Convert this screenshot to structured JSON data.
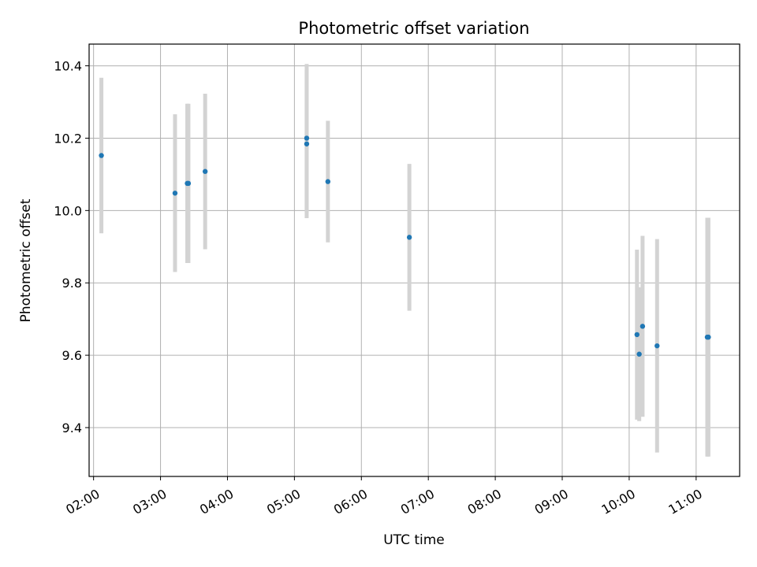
{
  "chart_data": {
    "type": "scatter",
    "title": "Photometric offset variation",
    "xlabel": "UTC time",
    "ylabel": "Photometric offset",
    "x_ticks": [
      "02:00",
      "03:00",
      "04:00",
      "05:00",
      "06:00",
      "07:00",
      "08:00",
      "09:00",
      "10:00",
      "11:00"
    ],
    "y_ticks": [
      "9.4",
      "9.6",
      "9.8",
      "10.0",
      "10.2",
      "10.4"
    ],
    "xlim": [
      "01:56",
      "11:39"
    ],
    "ylim": [
      9.265,
      10.46
    ],
    "grid": true,
    "legend": "none",
    "marker_color": "#1f77b4",
    "errorbar_color": "#d3d3d3",
    "points": [
      {
        "t": "02:07",
        "y": 10.152,
        "err": 0.215
      },
      {
        "t": "03:13",
        "y": 10.048,
        "err": 0.218
      },
      {
        "t": "03:24",
        "y": 10.075,
        "err": 0.22
      },
      {
        "t": "03:25",
        "y": 10.075,
        "err": 0.22
      },
      {
        "t": "03:40",
        "y": 10.108,
        "err": 0.215
      },
      {
        "t": "05:11",
        "y": 10.2,
        "err": 0.205
      },
      {
        "t": "05:11",
        "y": 10.184,
        "err": 0.205
      },
      {
        "t": "05:30",
        "y": 10.08,
        "err": 0.168
      },
      {
        "t": "06:43",
        "y": 9.926,
        "err": 0.203
      },
      {
        "t": "10:07",
        "y": 9.657,
        "err": 0.235
      },
      {
        "t": "10:09",
        "y": 9.603,
        "err": 0.185
      },
      {
        "t": "10:12",
        "y": 9.68,
        "err": 0.25
      },
      {
        "t": "10:25",
        "y": 9.626,
        "err": 0.295
      },
      {
        "t": "11:10",
        "y": 9.65,
        "err": 0.33
      },
      {
        "t": "11:11",
        "y": 9.65,
        "err": 0.33
      }
    ]
  }
}
